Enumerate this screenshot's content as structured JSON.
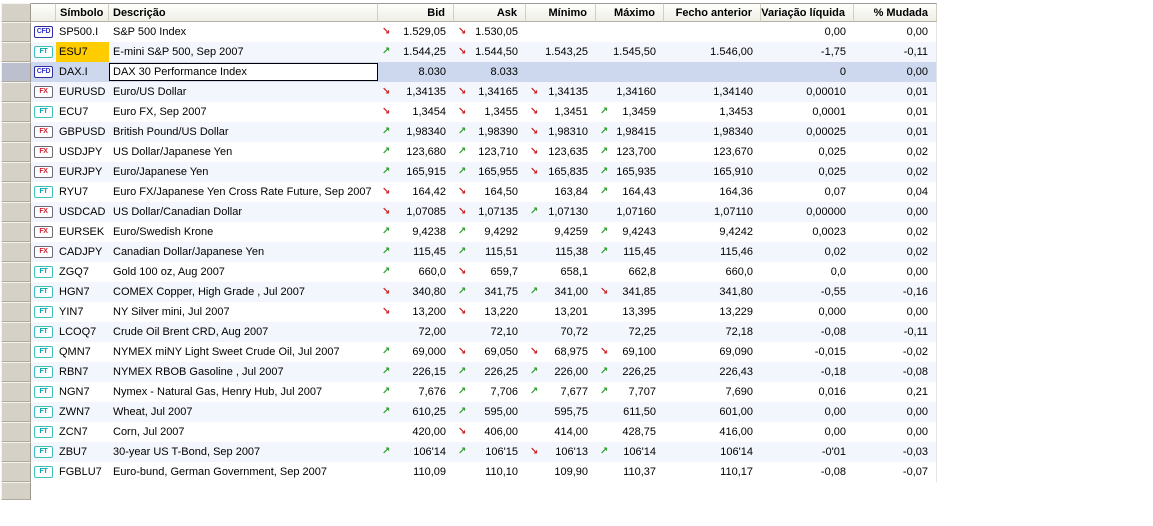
{
  "columns": {
    "symbol": "Símbolo",
    "description": "Descrição",
    "bid": "Bid",
    "ask": "Ask",
    "min": "Mínimo",
    "max": "Máximo",
    "prev_close": "Fecho anterior",
    "net_change": "Variação líquida",
    "pct_change": "% Mudada"
  },
  "icons": {
    "up_arrow": "↗",
    "down_arrow": "↘"
  },
  "colors": {
    "selected_row": "#cdd8ee",
    "stripe": "#f3f6fc",
    "symbol_highlight": "#ffcc00",
    "up": "#2f9e2f",
    "down": "#cc2222",
    "gutter": "#d5d1c6",
    "gutter_selected": "#bcc0ce",
    "badge_cfd": "#3333cc",
    "badge_ft": "#00a6a6",
    "badge_fx": "#cc2233"
  },
  "rows": [
    {
      "badge": "CFD",
      "symbol": "SP500.I",
      "description": "S&P 500 Index",
      "bid_arrow": "down",
      "bid": "1.529,05",
      "ask_arrow": "down",
      "ask": "1.530,05",
      "min_arrow": "",
      "min": "",
      "max_arrow": "",
      "max": "",
      "prev_close": "",
      "net_change": "0,00",
      "pct_change": "0,00",
      "selected": false,
      "editing": false,
      "symbol_highlight": false
    },
    {
      "badge": "FT",
      "symbol": "ESU7",
      "description": "E-mini S&P 500, Sep 2007",
      "bid_arrow": "up",
      "bid": "1.544,25",
      "ask_arrow": "down",
      "ask": "1.544,50",
      "min_arrow": "",
      "min": "1.543,25",
      "max_arrow": "",
      "max": "1.545,50",
      "prev_close": "1.546,00",
      "net_change": "-1,75",
      "pct_change": "-0,11",
      "selected": false,
      "editing": false,
      "symbol_highlight": true
    },
    {
      "badge": "CFD",
      "symbol": "DAX.I",
      "description": "DAX 30 Performance Index",
      "bid_arrow": "",
      "bid": "8.030",
      "ask_arrow": "",
      "ask": "8.033",
      "min_arrow": "",
      "min": "",
      "max_arrow": "",
      "max": "",
      "prev_close": "",
      "net_change": "0",
      "pct_change": "0,00",
      "selected": true,
      "editing": true,
      "symbol_highlight": false
    },
    {
      "badge": "FX",
      "symbol": "EURUSD",
      "description": "Euro/US Dollar",
      "bid_arrow": "down",
      "bid": "1,34135",
      "ask_arrow": "down",
      "ask": "1,34165",
      "min_arrow": "down",
      "min": "1,34135",
      "max_arrow": "",
      "max": "1,34160",
      "prev_close": "1,34140",
      "net_change": "0,00010",
      "pct_change": "0,01",
      "selected": false,
      "editing": false,
      "symbol_highlight": false
    },
    {
      "badge": "FT",
      "symbol": "ECU7",
      "description": "Euro FX, Sep 2007",
      "bid_arrow": "down",
      "bid": "1,3454",
      "ask_arrow": "down",
      "ask": "1,3455",
      "min_arrow": "down",
      "min": "1,3451",
      "max_arrow": "up",
      "max": "1,3459",
      "prev_close": "1,3453",
      "net_change": "0,0001",
      "pct_change": "0,01",
      "selected": false,
      "editing": false,
      "symbol_highlight": false
    },
    {
      "badge": "FX",
      "symbol": "GBPUSD",
      "description": "British Pound/US Dollar",
      "bid_arrow": "up",
      "bid": "1,98340",
      "ask_arrow": "up",
      "ask": "1,98390",
      "min_arrow": "down",
      "min": "1,98310",
      "max_arrow": "up",
      "max": "1,98415",
      "prev_close": "1,98340",
      "net_change": "0,00025",
      "pct_change": "0,01",
      "selected": false,
      "editing": false,
      "symbol_highlight": false
    },
    {
      "badge": "FX",
      "symbol": "USDJPY",
      "description": "US Dollar/Japanese Yen",
      "bid_arrow": "up",
      "bid": "123,680",
      "ask_arrow": "up",
      "ask": "123,710",
      "min_arrow": "down",
      "min": "123,635",
      "max_arrow": "up",
      "max": "123,700",
      "prev_close": "123,670",
      "net_change": "0,025",
      "pct_change": "0,02",
      "selected": false,
      "editing": false,
      "symbol_highlight": false
    },
    {
      "badge": "FX",
      "symbol": "EURJPY",
      "description": "Euro/Japanese Yen",
      "bid_arrow": "up",
      "bid": "165,915",
      "ask_arrow": "up",
      "ask": "165,955",
      "min_arrow": "down",
      "min": "165,835",
      "max_arrow": "up",
      "max": "165,935",
      "prev_close": "165,910",
      "net_change": "0,025",
      "pct_change": "0,02",
      "selected": false,
      "editing": false,
      "symbol_highlight": false
    },
    {
      "badge": "FT",
      "symbol": "RYU7",
      "description": "Euro FX/Japanese Yen Cross Rate Future, Sep 2007",
      "bid_arrow": "down",
      "bid": "164,42",
      "ask_arrow": "down",
      "ask": "164,50",
      "min_arrow": "",
      "min": "163,84",
      "max_arrow": "up",
      "max": "164,43",
      "prev_close": "164,36",
      "net_change": "0,07",
      "pct_change": "0,04",
      "selected": false,
      "editing": false,
      "symbol_highlight": false
    },
    {
      "badge": "FX",
      "symbol": "USDCAD",
      "description": "US Dollar/Canadian Dollar",
      "bid_arrow": "down",
      "bid": "1,07085",
      "ask_arrow": "down",
      "ask": "1,07135",
      "min_arrow": "up",
      "min": "1,07130",
      "max_arrow": "",
      "max": "1,07160",
      "prev_close": "1,07110",
      "net_change": "0,00000",
      "pct_change": "0,00",
      "selected": false,
      "editing": false,
      "symbol_highlight": false
    },
    {
      "badge": "FX",
      "symbol": "EURSEK",
      "description": "Euro/Swedish Krone",
      "bid_arrow": "up",
      "bid": "9,4238",
      "ask_arrow": "up",
      "ask": "9,4292",
      "min_arrow": "",
      "min": "9,4259",
      "max_arrow": "up",
      "max": "9,4243",
      "prev_close": "9,4242",
      "net_change": "0,0023",
      "pct_change": "0,02",
      "selected": false,
      "editing": false,
      "symbol_highlight": false
    },
    {
      "badge": "FX",
      "symbol": "CADJPY",
      "description": "Canadian Dollar/Japanese Yen",
      "bid_arrow": "up",
      "bid": "115,45",
      "ask_arrow": "up",
      "ask": "115,51",
      "min_arrow": "",
      "min": "115,38",
      "max_arrow": "up",
      "max": "115,45",
      "prev_close": "115,46",
      "net_change": "0,02",
      "pct_change": "0,02",
      "selected": false,
      "editing": false,
      "symbol_highlight": false
    },
    {
      "badge": "FT",
      "symbol": "ZGQ7",
      "description": "Gold 100 oz, Aug 2007",
      "bid_arrow": "up",
      "bid": "660,0",
      "ask_arrow": "down",
      "ask": "659,7",
      "min_arrow": "",
      "min": "658,1",
      "max_arrow": "",
      "max": "662,8",
      "prev_close": "660,0",
      "net_change": "0,0",
      "pct_change": "0,00",
      "selected": false,
      "editing": false,
      "symbol_highlight": false
    },
    {
      "badge": "FT",
      "symbol": "HGN7",
      "description": "COMEX Copper, High Grade , Jul 2007",
      "bid_arrow": "down",
      "bid": "340,80",
      "ask_arrow": "up",
      "ask": "341,75",
      "min_arrow": "up",
      "min": "341,00",
      "max_arrow": "down",
      "max": "341,85",
      "prev_close": "341,80",
      "net_change": "-0,55",
      "pct_change": "-0,16",
      "selected": false,
      "editing": false,
      "symbol_highlight": false
    },
    {
      "badge": "FT",
      "symbol": "YIN7",
      "description": "NY Silver mini, Jul 2007",
      "bid_arrow": "down",
      "bid": "13,200",
      "ask_arrow": "down",
      "ask": "13,220",
      "min_arrow": "",
      "min": "13,201",
      "max_arrow": "",
      "max": "13,395",
      "prev_close": "13,229",
      "net_change": "0,000",
      "pct_change": "0,00",
      "selected": false,
      "editing": false,
      "symbol_highlight": false
    },
    {
      "badge": "FT",
      "symbol": "LCOQ7",
      "description": "Crude Oil Brent CRD, Aug 2007",
      "bid_arrow": "",
      "bid": "72,00",
      "ask_arrow": "",
      "ask": "72,10",
      "min_arrow": "",
      "min": "70,72",
      "max_arrow": "",
      "max": "72,25",
      "prev_close": "72,18",
      "net_change": "-0,08",
      "pct_change": "-0,11",
      "selected": false,
      "editing": false,
      "symbol_highlight": false
    },
    {
      "badge": "FT",
      "symbol": "QMN7",
      "description": "NYMEX miNY Light Sweet Crude Oil, Jul 2007",
      "bid_arrow": "up",
      "bid": "69,000",
      "ask_arrow": "down",
      "ask": "69,050",
      "min_arrow": "down",
      "min": "68,975",
      "max_arrow": "down",
      "max": "69,100",
      "prev_close": "69,090",
      "net_change": "-0,015",
      "pct_change": "-0,02",
      "selected": false,
      "editing": false,
      "symbol_highlight": false
    },
    {
      "badge": "FT",
      "symbol": "RBN7",
      "description": "NYMEX RBOB Gasoline , Jul 2007",
      "bid_arrow": "up",
      "bid": "226,15",
      "ask_arrow": "up",
      "ask": "226,25",
      "min_arrow": "up",
      "min": "226,00",
      "max_arrow": "up",
      "max": "226,25",
      "prev_close": "226,43",
      "net_change": "-0,18",
      "pct_change": "-0,08",
      "selected": false,
      "editing": false,
      "symbol_highlight": false
    },
    {
      "badge": "FT",
      "symbol": "NGN7",
      "description": "Nymex - Natural Gas, Henry Hub, Jul 2007",
      "bid_arrow": "up",
      "bid": "7,676",
      "ask_arrow": "up",
      "ask": "7,706",
      "min_arrow": "up",
      "min": "7,677",
      "max_arrow": "up",
      "max": "7,707",
      "prev_close": "7,690",
      "net_change": "0,016",
      "pct_change": "0,21",
      "selected": false,
      "editing": false,
      "symbol_highlight": false
    },
    {
      "badge": "FT",
      "symbol": "ZWN7",
      "description": "Wheat, Jul 2007",
      "bid_arrow": "up",
      "bid": "610,25",
      "ask_arrow": "up",
      "ask": "595,00",
      "min_arrow": "",
      "min": "595,75",
      "max_arrow": "",
      "max": "611,50",
      "prev_close": "601,00",
      "net_change": "0,00",
      "pct_change": "0,00",
      "selected": false,
      "editing": false,
      "symbol_highlight": false
    },
    {
      "badge": "FT",
      "symbol": "ZCN7",
      "description": "Corn, Jul 2007",
      "bid_arrow": "",
      "bid": "420,00",
      "ask_arrow": "down",
      "ask": "406,00",
      "min_arrow": "",
      "min": "414,00",
      "max_arrow": "",
      "max": "428,75",
      "prev_close": "416,00",
      "net_change": "0,00",
      "pct_change": "0,00",
      "selected": false,
      "editing": false,
      "symbol_highlight": false
    },
    {
      "badge": "FT",
      "symbol": "ZBU7",
      "description": "30-year US T-Bond, Sep 2007",
      "bid_arrow": "up",
      "bid": "106'14",
      "ask_arrow": "up",
      "ask": "106'15",
      "min_arrow": "down",
      "min": "106'13",
      "max_arrow": "up",
      "max": "106'14",
      "prev_close": "106'14",
      "net_change": "-0'01",
      "pct_change": "-0,03",
      "selected": false,
      "editing": false,
      "symbol_highlight": false
    },
    {
      "badge": "FT",
      "symbol": "FGBLU7",
      "description": "Euro-bund, German Government, Sep 2007",
      "bid_arrow": "",
      "bid": "110,09",
      "ask_arrow": "",
      "ask": "110,10",
      "min_arrow": "",
      "min": "109,90",
      "max_arrow": "",
      "max": "110,37",
      "prev_close": "110,17",
      "net_change": "-0,08",
      "pct_change": "-0,07",
      "selected": false,
      "editing": false,
      "symbol_highlight": false
    }
  ]
}
